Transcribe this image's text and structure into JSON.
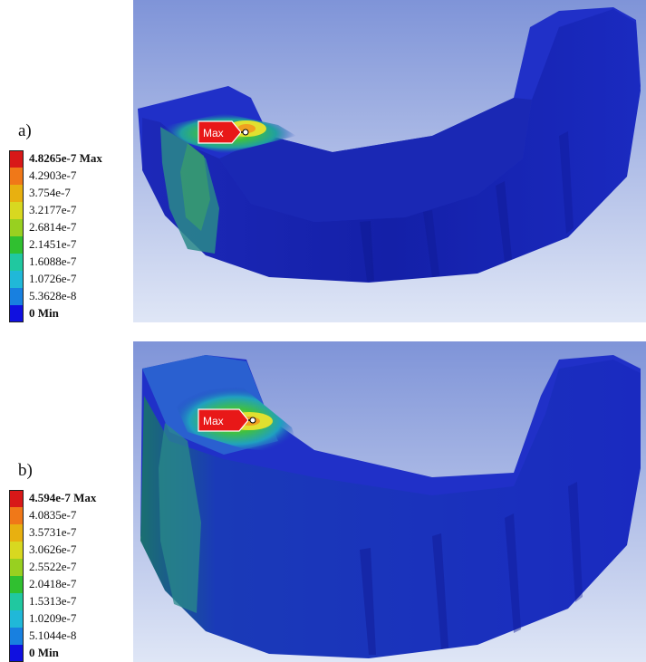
{
  "panels": [
    {
      "label": "a)",
      "marker": "Max",
      "legend": [
        {
          "value": "4.8265e-7 Max",
          "color": "#d81818",
          "bold": true
        },
        {
          "value": "4.2903e-7",
          "color": "#f07818"
        },
        {
          "value": "3.754e-7",
          "color": "#e8b010"
        },
        {
          "value": "3.2177e-7",
          "color": "#d8d820"
        },
        {
          "value": "2.6814e-7",
          "color": "#98d020"
        },
        {
          "value": "2.1451e-7",
          "color": "#30c030"
        },
        {
          "value": "1.6088e-7",
          "color": "#20c8a0"
        },
        {
          "value": "1.0726e-7",
          "color": "#20b8d8"
        },
        {
          "value": "5.3628e-8",
          "color": "#1880e0"
        },
        {
          "value": "0 Min",
          "color": "#1010e0",
          "bold": true
        }
      ]
    },
    {
      "label": "b)",
      "marker": "Max",
      "legend": [
        {
          "value": "4.594e-7 Max",
          "color": "#d81818",
          "bold": true
        },
        {
          "value": "4.0835e-7",
          "color": "#f07818"
        },
        {
          "value": "3.5731e-7",
          "color": "#e8b010"
        },
        {
          "value": "3.0626e-7",
          "color": "#d8d820"
        },
        {
          "value": "2.5522e-7",
          "color": "#98d020"
        },
        {
          "value": "2.0418e-7",
          "color": "#30c030"
        },
        {
          "value": "1.5313e-7",
          "color": "#20c8a0"
        },
        {
          "value": "1.0209e-7",
          "color": "#20b8d8"
        },
        {
          "value": "5.1044e-8",
          "color": "#1880e0"
        },
        {
          "value": "0 Min",
          "color": "#1010e0",
          "bold": true
        }
      ]
    }
  ]
}
